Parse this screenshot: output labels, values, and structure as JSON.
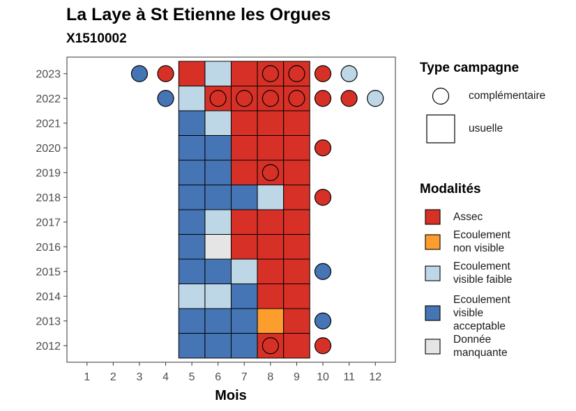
{
  "chart_data": {
    "type": "heatmap",
    "title": "La Laye à St Etienne les Orgues",
    "subtitle": "X1510002",
    "xlabel": "Mois",
    "ylabel": "",
    "x_categories": [
      "1",
      "2",
      "3",
      "4",
      "5",
      "6",
      "7",
      "8",
      "9",
      "10",
      "11",
      "12"
    ],
    "y_categories": [
      "2012",
      "2013",
      "2014",
      "2015",
      "2016",
      "2017",
      "2018",
      "2019",
      "2020",
      "2021",
      "2022",
      "2023"
    ],
    "grid": false,
    "legend_position": "right",
    "legend": {
      "campaign_title": "Type campagne",
      "campaign_items": [
        {
          "key": "complementaire",
          "label": "complémentaire",
          "shape": "circle"
        },
        {
          "key": "usuelle",
          "label": "usuelle",
          "shape": "square"
        }
      ],
      "modalities_title": "Modalités",
      "modalities": [
        {
          "key": "assec",
          "label": "Assec",
          "color": "#d73027"
        },
        {
          "key": "ecoulement_non_visible",
          "label": "Ecoulement non visible",
          "color": "#fc9d2e"
        },
        {
          "key": "ecoulement_visible_faible",
          "label": "Ecoulement visible faible",
          "color": "#bdd7e7"
        },
        {
          "key": "ecoulement_visible_acceptable",
          "label": "Ecoulement visible acceptable",
          "color": "#4575b4"
        },
        {
          "key": "donnee_manquante",
          "label": "Donnée manquante",
          "color": "#e5e5e5"
        }
      ]
    },
    "usuelle": [
      {
        "year": "2012",
        "months": {
          "5": "ecoulement_visible_acceptable",
          "6": "ecoulement_visible_acceptable",
          "7": "ecoulement_visible_acceptable",
          "8": "assec",
          "9": "assec"
        }
      },
      {
        "year": "2013",
        "months": {
          "5": "ecoulement_visible_acceptable",
          "6": "ecoulement_visible_acceptable",
          "7": "ecoulement_visible_acceptable",
          "8": "ecoulement_non_visible",
          "9": "assec"
        }
      },
      {
        "year": "2014",
        "months": {
          "5": "ecoulement_visible_faible",
          "6": "ecoulement_visible_faible",
          "7": "ecoulement_visible_acceptable",
          "8": "assec",
          "9": "assec"
        }
      },
      {
        "year": "2015",
        "months": {
          "5": "ecoulement_visible_acceptable",
          "6": "ecoulement_visible_acceptable",
          "7": "ecoulement_visible_faible",
          "8": "assec",
          "9": "assec"
        }
      },
      {
        "year": "2016",
        "months": {
          "5": "ecoulement_visible_acceptable",
          "6": "donnee_manquante",
          "7": "assec",
          "8": "assec",
          "9": "assec"
        }
      },
      {
        "year": "2017",
        "months": {
          "5": "ecoulement_visible_acceptable",
          "6": "ecoulement_visible_faible",
          "7": "assec",
          "8": "assec",
          "9": "assec"
        }
      },
      {
        "year": "2018",
        "months": {
          "5": "ecoulement_visible_acceptable",
          "6": "ecoulement_visible_acceptable",
          "7": "ecoulement_visible_acceptable",
          "8": "ecoulement_visible_faible",
          "9": "assec"
        }
      },
      {
        "year": "2019",
        "months": {
          "5": "ecoulement_visible_acceptable",
          "6": "ecoulement_visible_acceptable",
          "7": "assec",
          "8": "assec",
          "9": "assec"
        }
      },
      {
        "year": "2020",
        "months": {
          "5": "ecoulement_visible_acceptable",
          "6": "ecoulement_visible_acceptable",
          "7": "assec",
          "8": "assec",
          "9": "assec"
        }
      },
      {
        "year": "2021",
        "months": {
          "5": "ecoulement_visible_acceptable",
          "6": "ecoulement_visible_faible",
          "7": "assec",
          "8": "assec",
          "9": "assec"
        }
      },
      {
        "year": "2022",
        "months": {
          "5": "ecoulement_visible_faible",
          "6": "assec",
          "7": "assec",
          "8": "assec",
          "9": "assec"
        }
      },
      {
        "year": "2023",
        "months": {
          "5": "assec",
          "6": "ecoulement_visible_faible",
          "7": "assec",
          "8": "assec",
          "9": "assec"
        }
      }
    ],
    "complementaire": [
      {
        "year": "2012",
        "month": "8",
        "modality": "assec"
      },
      {
        "year": "2012",
        "month": "10",
        "modality": "assec"
      },
      {
        "year": "2013",
        "month": "10",
        "modality": "ecoulement_visible_acceptable"
      },
      {
        "year": "2015",
        "month": "10",
        "modality": "ecoulement_visible_acceptable"
      },
      {
        "year": "2018",
        "month": "10",
        "modality": "assec"
      },
      {
        "year": "2019",
        "month": "8",
        "modality": "assec"
      },
      {
        "year": "2020",
        "month": "10",
        "modality": "assec"
      },
      {
        "year": "2022",
        "month": "4",
        "modality": "ecoulement_visible_acceptable"
      },
      {
        "year": "2022",
        "month": "6",
        "modality": "assec"
      },
      {
        "year": "2022",
        "month": "7",
        "modality": "assec"
      },
      {
        "year": "2022",
        "month": "8",
        "modality": "assec"
      },
      {
        "year": "2022",
        "month": "9",
        "modality": "assec"
      },
      {
        "year": "2022",
        "month": "10",
        "modality": "assec"
      },
      {
        "year": "2022",
        "month": "11",
        "modality": "assec"
      },
      {
        "year": "2022",
        "month": "12",
        "modality": "ecoulement_visible_faible"
      },
      {
        "year": "2023",
        "month": "3",
        "modality": "ecoulement_visible_acceptable"
      },
      {
        "year": "2023",
        "month": "4",
        "modality": "assec"
      },
      {
        "year": "2023",
        "month": "8",
        "modality": "assec"
      },
      {
        "year": "2023",
        "month": "9",
        "modality": "assec"
      },
      {
        "year": "2023",
        "month": "10",
        "modality": "assec"
      },
      {
        "year": "2023",
        "month": "11",
        "modality": "ecoulement_visible_faible"
      }
    ]
  }
}
